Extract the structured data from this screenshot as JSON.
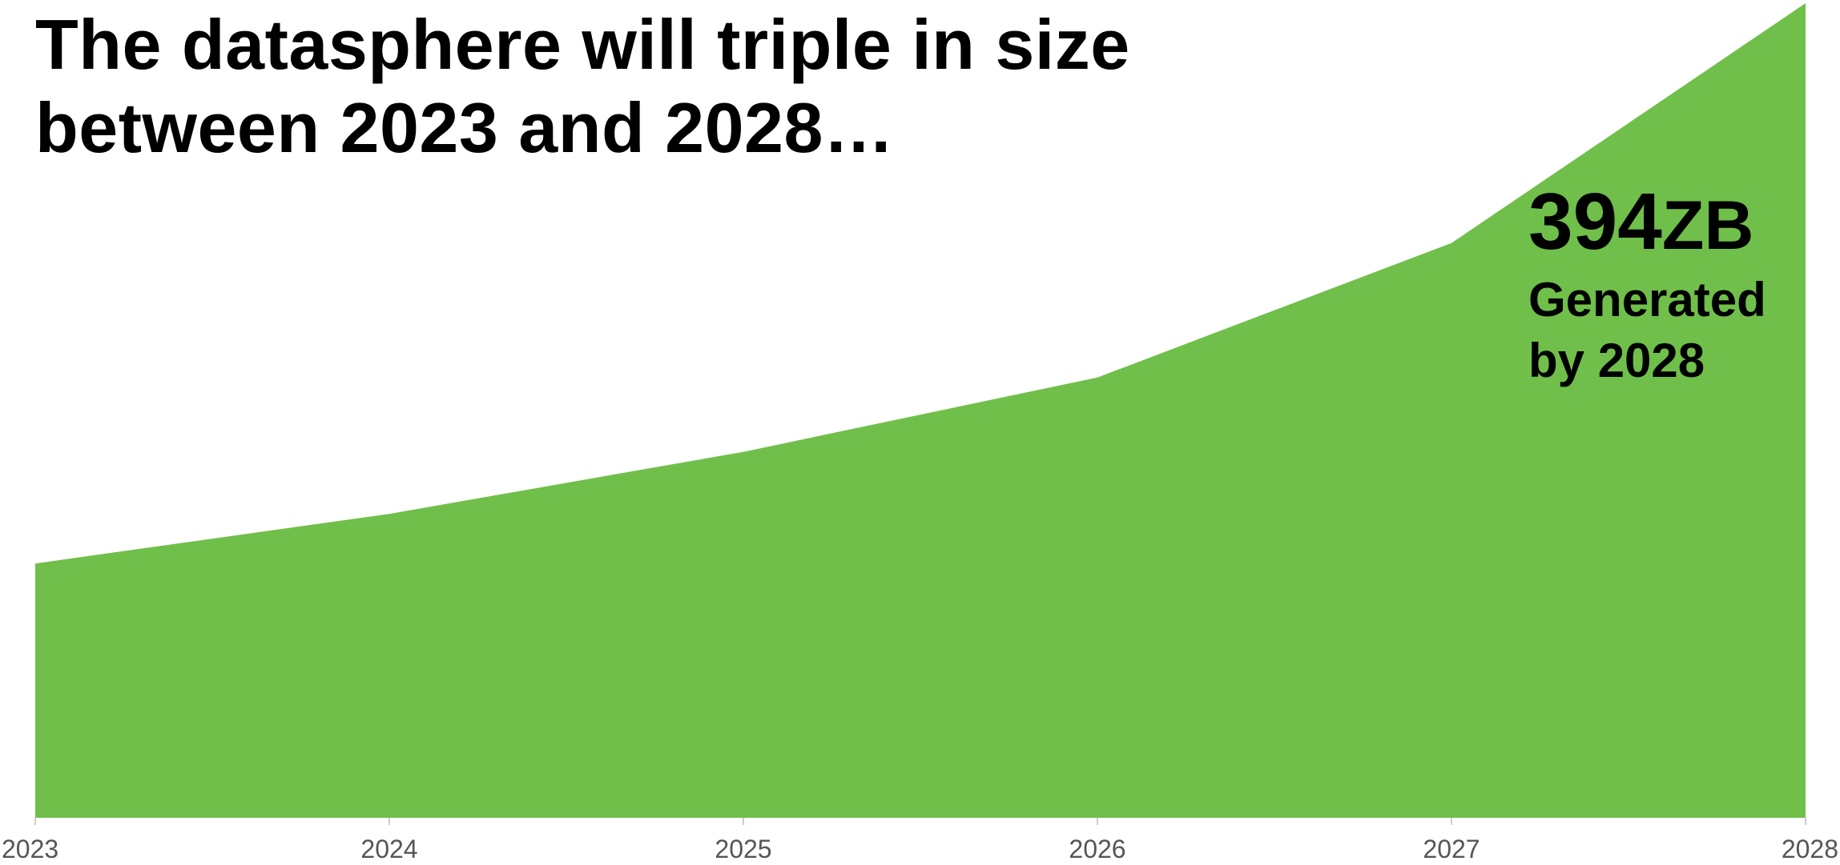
{
  "title": {
    "line1": "The datasphere will triple in size",
    "line2": "between 2023 and 2028…"
  },
  "callout": {
    "value": "394",
    "unit": "ZB",
    "line1": "Generated",
    "line2": "by 2028"
  },
  "chart_data": {
    "type": "area",
    "x": [
      "2023",
      "2024",
      "2025",
      "2026",
      "2027",
      "2028"
    ],
    "series": [
      {
        "values": [
          123,
          147,
          177,
          213,
          278,
          394
        ]
      }
    ],
    "ylim": [
      0,
      394
    ],
    "xlabel": "",
    "ylabel": "",
    "grid": false,
    "y_axis_visible": false,
    "color": "#70bf4a"
  }
}
